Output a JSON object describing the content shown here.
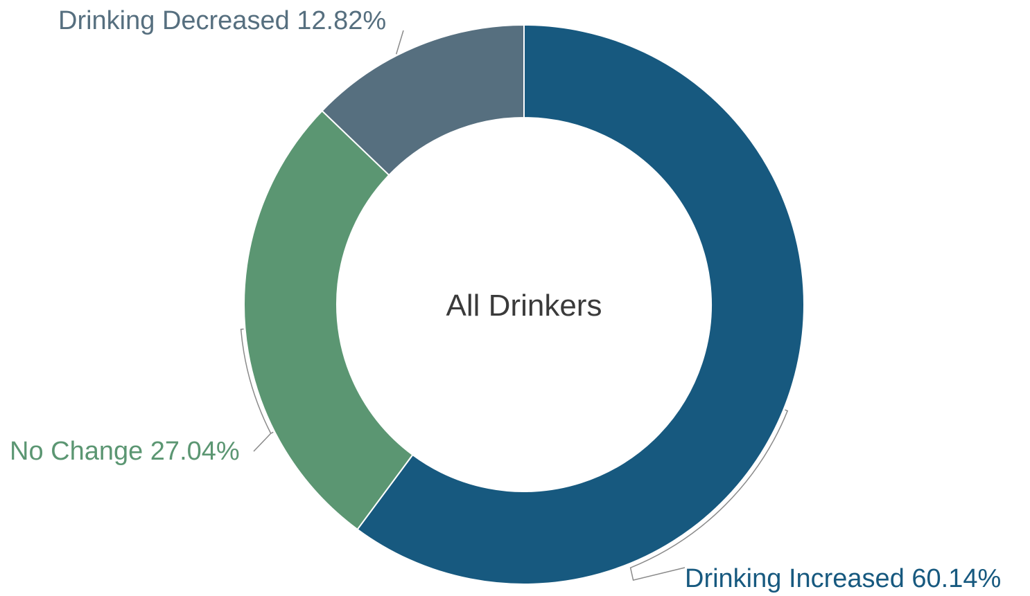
{
  "chart_data": {
    "type": "pie",
    "variant": "donut",
    "center_label": "All Drinkers",
    "slices": [
      {
        "label": "Drinking Increased",
        "value": 60.14,
        "display": "Drinking Increased 60.14%",
        "color": "#17597f",
        "label_color": "#17597f"
      },
      {
        "label": "No Change",
        "value": 27.04,
        "display": "No Change 27.04%",
        "color": "#5b9672",
        "label_color": "#5b9672"
      },
      {
        "label": "Drinking Decreased",
        "value": 12.82,
        "display": "Drinking Decreased 12.82%",
        "color": "#566f7f",
        "label_color": "#566f7f"
      }
    ],
    "start_angle": "12 o'clock",
    "direction": "clockwise",
    "legend": "none",
    "center_label_color": "#3a3a3a"
  }
}
